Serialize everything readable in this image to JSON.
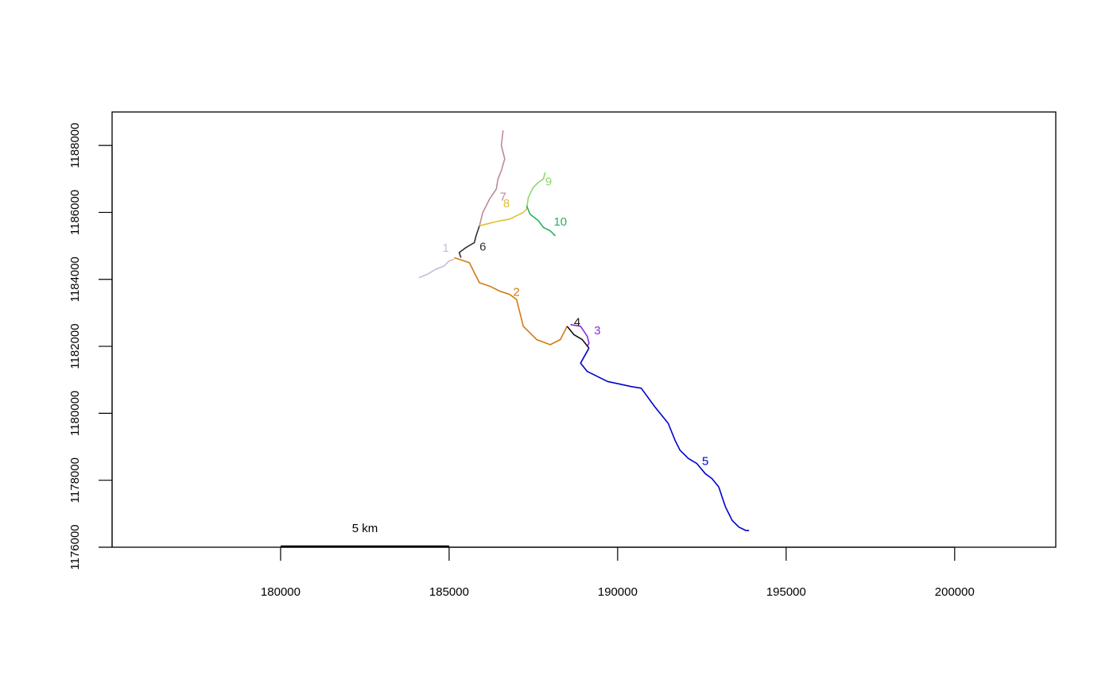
{
  "chart_data": {
    "type": "line",
    "title": "",
    "xlabel": "",
    "ylabel": "",
    "xlim": [
      175000,
      203000
    ],
    "ylim": [
      1176000,
      1189000
    ],
    "x_ticks": [
      180000,
      185000,
      190000,
      195000,
      200000
    ],
    "y_ticks": [
      1176000,
      1178000,
      1180000,
      1182000,
      1184000,
      1186000,
      1188000
    ],
    "grid": false,
    "legend": "none",
    "scale_bar": {
      "label": "5 km",
      "from": 180000,
      "to": 185000
    },
    "series": [
      {
        "name": "1",
        "color": "#c6bcd8",
        "label_at": [
          184900,
          1184920
        ],
        "x": [
          184100,
          184350,
          184600,
          184850,
          185000,
          185150
        ],
        "y": [
          1184050,
          1184150,
          1184300,
          1184400,
          1184550,
          1184600
        ]
      },
      {
        "name": "2",
        "color": "#d17a10",
        "label_at": [
          187000,
          1183600
        ],
        "x": [
          185150,
          185600,
          185800,
          185900,
          186200,
          186500,
          186800,
          187000,
          187100,
          187200,
          187400,
          187600,
          188000,
          188300,
          188500
        ],
        "y": [
          1184650,
          1184500,
          1184100,
          1183900,
          1183800,
          1183650,
          1183550,
          1183400,
          1183000,
          1182600,
          1182400,
          1182200,
          1182050,
          1182200,
          1182600
        ]
      },
      {
        "name": "3",
        "color": "#8a2be2",
        "label_at": [
          189400,
          1182450
        ],
        "x": [
          188600,
          188900,
          189000,
          189100,
          189150,
          189100
        ],
        "y": [
          1182650,
          1182600,
          1182450,
          1182300,
          1182100,
          1182000
        ]
      },
      {
        "name": "4",
        "color": "#111111",
        "label_at": [
          188800,
          1182700
        ],
        "x": [
          188500,
          188700,
          188950,
          189150
        ],
        "y": [
          1182600,
          1182350,
          1182200,
          1181950
        ]
      },
      {
        "name": "5",
        "color": "#0000cc",
        "label_at": [
          192600,
          1178550
        ],
        "x": [
          189150,
          188900,
          189100,
          189700,
          190400,
          190700,
          191100,
          191500,
          191700,
          191850,
          192100,
          192350,
          192600,
          192800,
          193000,
          193100,
          193200,
          193400,
          193600,
          193800,
          193900
        ],
        "y": [
          1181950,
          1181500,
          1181250,
          1180950,
          1180800,
          1180750,
          1180200,
          1179700,
          1179200,
          1178900,
          1178650,
          1178500,
          1178200,
          1178050,
          1177800,
          1177500,
          1177200,
          1176800,
          1176600,
          1176500,
          1176500
        ]
      },
      {
        "name": "6",
        "color": "#333333",
        "label_at": [
          186000,
          1184950
        ],
        "x": [
          185350,
          185300,
          185500,
          185750,
          185800,
          185900
        ],
        "y": [
          1184650,
          1184800,
          1184950,
          1185100,
          1185300,
          1185600
        ]
      },
      {
        "name": "7",
        "color": "#c08a98",
        "label_at": [
          186600,
          1186450
        ],
        "x": [
          185900,
          186000,
          186200,
          186400,
          186450,
          186550,
          186650,
          186550,
          186600
        ],
        "y": [
          1185600,
          1186000,
          1186400,
          1186700,
          1187000,
          1187250,
          1187600,
          1188000,
          1188450
        ]
      },
      {
        "name": "8",
        "color": "#e0c030",
        "label_at": [
          186700,
          1186250
        ],
        "x": [
          185900,
          186100,
          186500,
          186800,
          187000,
          187200,
          187300
        ],
        "y": [
          1185600,
          1185650,
          1185750,
          1185800,
          1185900,
          1186000,
          1186100
        ]
      },
      {
        "name": "9",
        "color": "#8ed86a",
        "label_at": [
          187950,
          1186900
        ],
        "x": [
          187300,
          187350,
          187500,
          187650,
          187800,
          187850
        ],
        "y": [
          1186100,
          1186450,
          1186750,
          1186900,
          1187000,
          1187200
        ]
      },
      {
        "name": "10",
        "color": "#2bb060",
        "label_at": [
          188300,
          1185700
        ],
        "x": [
          187300,
          187400,
          187650,
          187800,
          188000,
          188150
        ],
        "y": [
          1186200,
          1185950,
          1185750,
          1185550,
          1185450,
          1185300
        ]
      }
    ]
  }
}
